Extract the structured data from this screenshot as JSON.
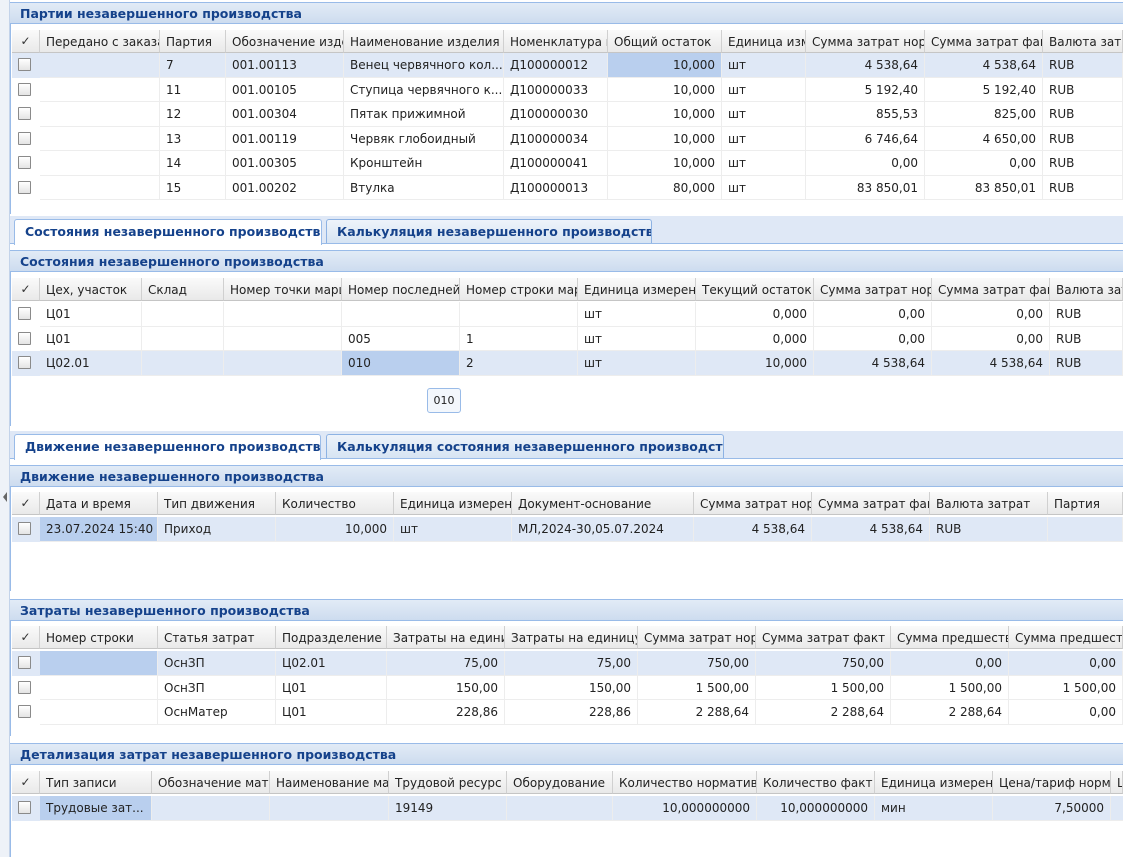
{
  "tabs": [
    [
      "Состояния незавершенного производства",
      "Калькуляция незавершенного производства"
    ],
    [
      "Движение незавершенного производства",
      "Калькуляция состояния незавершенного производства"
    ]
  ],
  "tooltip": "010",
  "grids": [
    {
      "title": "Партии незавершенного производства",
      "columns": [
        "Передано с заказа",
        "Партия",
        "Обозначение изде",
        "Наименование изделия",
        "Номенклатура и",
        "Общий остаток",
        "Единица изм",
        "Сумма затрат норм",
        "Сумма затрат факт",
        "Валюта затр"
      ],
      "rows": [
        [
          null,
          "7",
          "001.00113",
          "Венец червячного кол...",
          "Д100000012",
          "10,000",
          "шт",
          "4 538,64",
          "4 538,64",
          "RUB"
        ],
        [
          null,
          "11",
          "001.00105",
          "Ступица червячного к...",
          "Д100000033",
          "10,000",
          "шт",
          "5 192,40",
          "5 192,40",
          "RUB"
        ],
        [
          null,
          "12",
          "001.00304",
          "Пятак прижимной",
          "Д100000030",
          "10,000",
          "шт",
          "855,53",
          "825,00",
          "RUB"
        ],
        [
          null,
          "13",
          "001.00119",
          "Червяк глобоидный",
          "Д100000034",
          "10,000",
          "шт",
          "6 746,64",
          "4 650,00",
          "RUB"
        ],
        [
          null,
          "14",
          "001.00305",
          "Кронштейн",
          "Д100000041",
          "10,000",
          "шт",
          "0,00",
          "0,00",
          "RUB"
        ],
        [
          null,
          "15",
          "001.00202",
          "Втулка",
          "Д100000013",
          "80,000",
          "шт",
          "83 850,01",
          "83 850,01",
          "RUB"
        ]
      ]
    },
    {
      "title": "Состояния незавершенного производства",
      "columns": [
        "Цех, участок",
        "Склад",
        "Номер точки марш",
        "Номер последней",
        "Номер строки мар",
        "Единица измерени",
        "Текущий остаток",
        "Сумма затрат норм",
        "Сумма затрат факт",
        "Валюта зат"
      ],
      "rows": [
        [
          "Ц01",
          null,
          null,
          null,
          null,
          "шт",
          "0,000",
          "0,00",
          "0,00",
          "RUB"
        ],
        [
          "Ц01",
          null,
          null,
          "005",
          "1",
          "шт",
          "0,000",
          "0,00",
          "0,00",
          "RUB"
        ],
        [
          "Ц02.01",
          null,
          null,
          "010",
          "2",
          "шт",
          "10,000",
          "4 538,64",
          "4 538,64",
          "RUB"
        ]
      ]
    },
    {
      "title": "Движение незавершенного производства",
      "columns": [
        "Дата и время",
        "Тип движения",
        "Количество",
        "Единица измерени",
        "Документ-основание",
        "Сумма затрат норм",
        "Сумма затрат фак",
        "Валюта затрат",
        "Партия"
      ],
      "rows": [
        [
          "23.07.2024 15:40",
          "Приход",
          "10,000",
          "шт",
          "МЛ,2024-30,05.07.2024",
          "4 538,64",
          "4 538,64",
          "RUB",
          null
        ]
      ]
    },
    {
      "title": "Затраты незавершенного производства",
      "columns": [
        "Номер строки",
        "Статья затрат",
        "Подразделение",
        "Затраты на едини",
        "Затраты на единицу",
        "Сумма затрат норм",
        "Сумма затрат факт",
        "Сумма предшеству",
        "Сумма предшеств"
      ],
      "rows": [
        [
          null,
          "ОснЗП",
          "Ц02.01",
          "75,00",
          "75,00",
          "750,00",
          "750,00",
          "0,00",
          "0,00"
        ],
        [
          null,
          "ОснЗП",
          "Ц01",
          "150,00",
          "150,00",
          "1 500,00",
          "1 500,00",
          "1 500,00",
          "1 500,00"
        ],
        [
          null,
          "ОснМатер",
          "Ц01",
          "228,86",
          "228,86",
          "2 288,64",
          "2 288,64",
          "2 288,64",
          "0,00"
        ]
      ]
    },
    {
      "title": "Детализация затрат незавершенного производства",
      "columns": [
        "Тип записи",
        "Обозначение мате",
        "Наименование мат",
        "Трудовой ресурс",
        "Оборудование",
        "Количество норматив",
        "Количество факт",
        "Единица измерени",
        "Цена/тариф норма",
        "L"
      ],
      "rows": [
        [
          "Трудовые зат...",
          null,
          null,
          "19149",
          null,
          "10,000000000",
          "10,000000000",
          "мин",
          "7,50000",
          null
        ]
      ]
    }
  ]
}
